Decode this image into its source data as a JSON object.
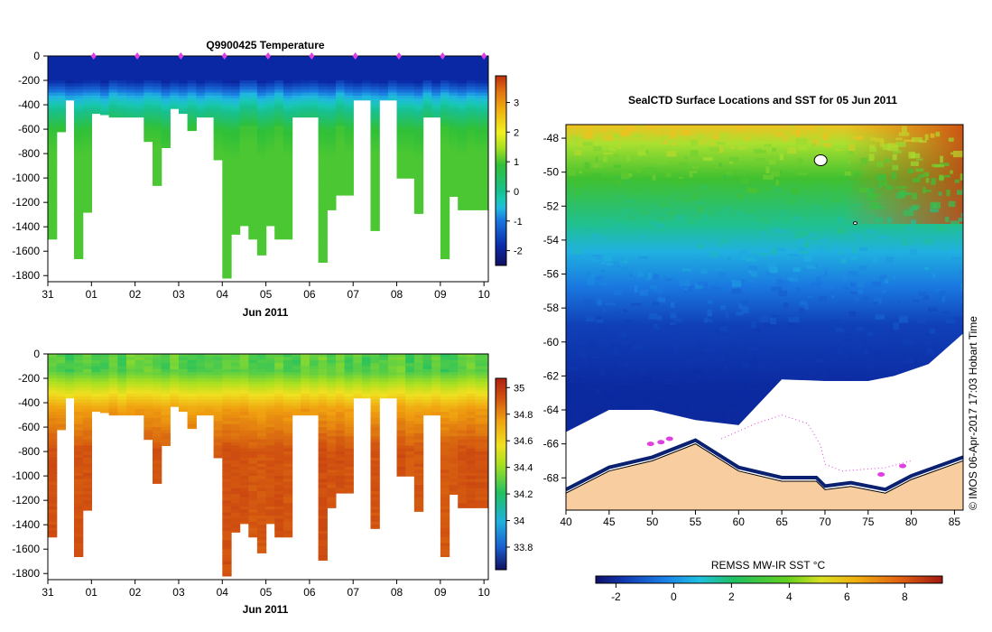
{
  "chart_data": [
    {
      "type": "heatmap",
      "title": "Q9900425  Temperature",
      "xlabel": "Jun 2011",
      "ylabel": "",
      "x_tick_labels": [
        "31",
        "01",
        "02",
        "03",
        "04",
        "05",
        "06",
        "07",
        "08",
        "09",
        "10"
      ],
      "x_range_days": [
        0,
        10.1
      ],
      "y_tick_values": [
        0,
        -200,
        -400,
        -600,
        -800,
        -1000,
        -1200,
        -1400,
        -1600,
        -1800
      ],
      "ylim": [
        -1850,
        0
      ],
      "colorbar": {
        "min": -2.5,
        "max": 3.9,
        "ticks": [
          -2,
          -1,
          0,
          1,
          2,
          3
        ]
      },
      "profile_days": [
        0.0,
        0.2,
        0.4,
        0.6,
        0.8,
        1.0,
        1.2,
        1.4,
        1.6,
        1.8,
        2.0,
        2.2,
        2.4,
        2.6,
        2.8,
        3.0,
        3.2,
        3.4,
        3.6,
        3.8,
        4.0,
        4.2,
        4.4,
        4.6,
        4.8,
        5.0,
        5.2,
        5.4,
        5.6,
        5.8,
        6.0,
        6.2,
        6.4,
        6.6,
        6.8,
        7.0,
        7.2,
        7.4,
        7.6,
        7.8,
        8.0,
        8.2,
        8.4,
        8.6,
        8.8,
        9.0,
        9.2,
        9.4,
        9.6,
        9.8
      ],
      "profile_max_depths": [
        -1500,
        -620,
        -360,
        -1660,
        -1280,
        -470,
        -480,
        -500,
        -500,
        -500,
        -500,
        -700,
        -1060,
        -750,
        -430,
        -470,
        -610,
        -500,
        -500,
        -850,
        -1820,
        -1460,
        -1390,
        -1500,
        -1630,
        -1390,
        -1500,
        -1500,
        -500,
        -500,
        -500,
        -1690,
        -1260,
        -1140,
        -1140,
        -360,
        -360,
        -1430,
        -360,
        -360,
        -1000,
        -1000,
        -1290,
        -500,
        -500,
        -1660,
        -1150,
        -1260,
        -1260,
        -1260
      ],
      "surface_location_markers_days": [
        1.05,
        2.05,
        3.05,
        4.05,
        5.05,
        6.05,
        7.05,
        8.05,
        9.05,
        10.0
      ]
    },
    {
      "type": "heatmap",
      "title": "",
      "xlabel": "Jun 2011",
      "ylabel": "",
      "x_tick_labels": [
        "31",
        "01",
        "02",
        "03",
        "04",
        "05",
        "06",
        "07",
        "08",
        "09",
        "10"
      ],
      "y_tick_values": [
        0,
        -200,
        -400,
        -600,
        -800,
        -1000,
        -1200,
        -1400,
        -1600,
        -1800
      ],
      "ylim": [
        -1850,
        0
      ],
      "colorbar": {
        "min": 33.63,
        "max": 35.07,
        "ticks": [
          33.8,
          34,
          34.2,
          34.4,
          34.6,
          34.8,
          35
        ]
      },
      "profile_days_ref": "same as temperature panel"
    },
    {
      "type": "heatmap",
      "title": "SealCTD Surface Locations and SST for 05 Jun 2011",
      "xlabel": "",
      "ylabel": "",
      "x_tick_labels": [
        "40",
        "45",
        "50",
        "55",
        "60",
        "65",
        "70",
        "75",
        "80",
        "85"
      ],
      "y_tick_labels": [
        "-48",
        "-50",
        "-52",
        "-54",
        "-56",
        "-58",
        "-60",
        "-62",
        "-64",
        "-66",
        "-68"
      ],
      "xlim": [
        40,
        86
      ],
      "ylim": [
        -69.9,
        -47.2
      ],
      "colorbar": {
        "label": "REMSS MW-IR SST °C",
        "min": -2.7,
        "max": 9.3,
        "ticks": [
          -2,
          0,
          2,
          4,
          6,
          8
        ]
      },
      "side_label": "©  IMOS 06-Apr-2017 17:03 Hobart Time",
      "ice_edge_lat": [
        [
          40,
          -65.3
        ],
        [
          45,
          -64.0
        ],
        [
          50,
          -64.0
        ],
        [
          55,
          -64.6
        ],
        [
          60,
          -64.9
        ],
        [
          65,
          -62.2
        ],
        [
          70,
          -62.3
        ],
        [
          75,
          -62.3
        ],
        [
          78,
          -62.0
        ],
        [
          82,
          -61.3
        ],
        [
          86,
          -59.5
        ]
      ],
      "coast_lat": [
        [
          40,
          -68.9
        ],
        [
          45,
          -67.6
        ],
        [
          50,
          -67.0
        ],
        [
          55,
          -66.0
        ],
        [
          60,
          -67.6
        ],
        [
          65,
          -68.2
        ],
        [
          69,
          -68.2
        ],
        [
          70,
          -68.7
        ],
        [
          73,
          -68.5
        ],
        [
          77,
          -68.9
        ],
        [
          80,
          -68.1
        ],
        [
          86,
          -67.0
        ]
      ]
    }
  ],
  "colors": {
    "land": "#f8cda0",
    "marker": "#e040e0",
    "ice": "#ffffff"
  }
}
